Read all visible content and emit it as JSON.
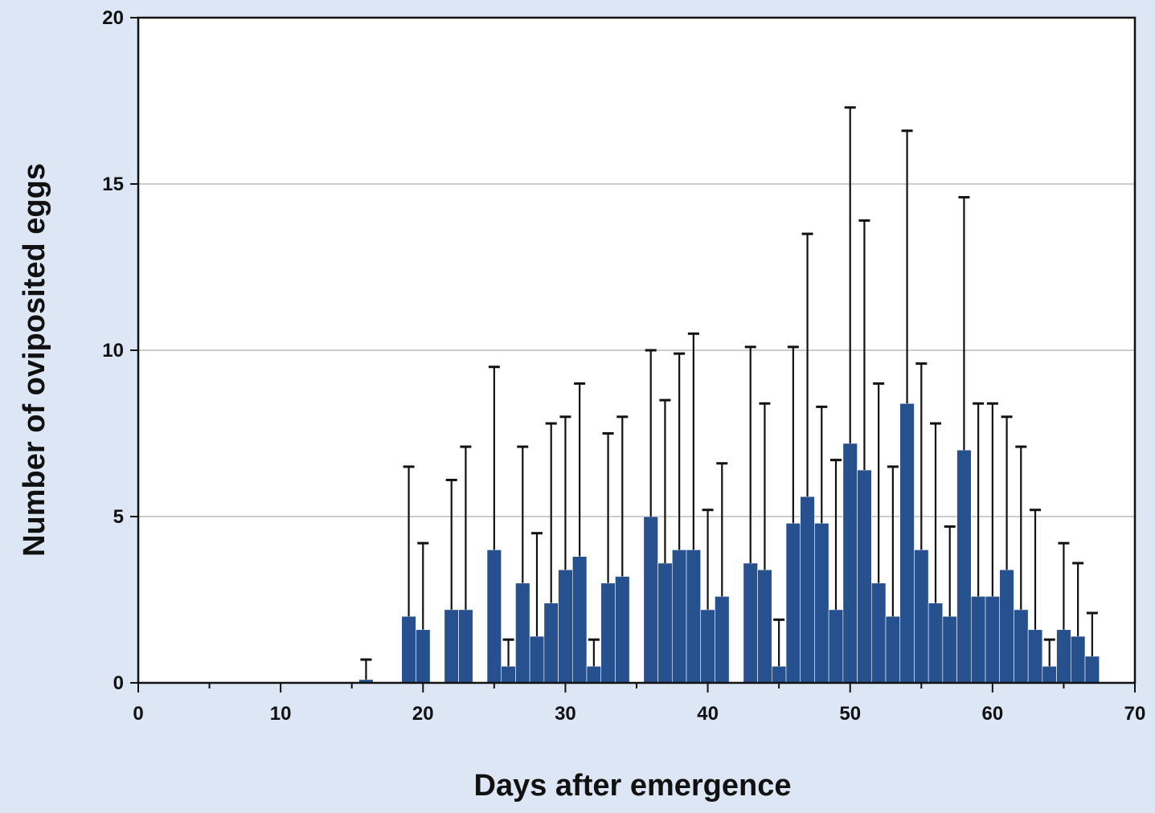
{
  "chart_data": {
    "type": "bar",
    "xlabel": "Days after emergence",
    "ylabel": "Number of oviposited eggs",
    "xlim": [
      0,
      70
    ],
    "ylim": [
      0,
      20
    ],
    "xticks": [
      "0",
      "10",
      "20",
      "30",
      "40",
      "50",
      "60",
      "70"
    ],
    "yticks": [
      "0",
      "5",
      "10",
      "15",
      "20"
    ],
    "grid": "horizontal",
    "bar_color": "#27508f",
    "error_bar_color": "#111111",
    "x": [
      16,
      19,
      20,
      22,
      23,
      25,
      26,
      27,
      28,
      29,
      30,
      31,
      32,
      33,
      34,
      36,
      37,
      38,
      39,
      40,
      41,
      43,
      44,
      45,
      46,
      47,
      48,
      49,
      50,
      51,
      52,
      53,
      54,
      55,
      56,
      57,
      58,
      59,
      60,
      61,
      62,
      63,
      64,
      65,
      66,
      67
    ],
    "values": [
      0.1,
      2.0,
      1.6,
      2.2,
      2.2,
      4.0,
      0.5,
      3.0,
      1.4,
      2.4,
      3.4,
      3.8,
      0.5,
      3.0,
      3.2,
      5.0,
      3.6,
      4.0,
      4.0,
      2.2,
      2.6,
      3.6,
      3.4,
      0.5,
      4.8,
      5.6,
      4.8,
      2.2,
      7.2,
      6.4,
      3.0,
      2.0,
      8.4,
      4.0,
      2.4,
      2.0,
      7.0,
      2.6,
      2.6,
      3.4,
      2.2,
      1.6,
      0.5,
      1.6,
      1.4,
      0.8
    ],
    "error_upper": [
      0.7,
      6.5,
      4.2,
      6.1,
      7.1,
      9.5,
      1.3,
      7.1,
      4.5,
      7.8,
      8.0,
      9.0,
      1.3,
      7.5,
      8.0,
      10.0,
      8.5,
      9.9,
      10.5,
      5.2,
      6.6,
      10.1,
      8.4,
      1.9,
      10.1,
      13.5,
      8.3,
      6.7,
      17.3,
      13.9,
      9.0,
      6.5,
      16.6,
      9.6,
      7.8,
      4.7,
      14.6,
      8.4,
      8.4,
      8.0,
      7.1,
      5.2,
      1.3,
      4.2,
      3.6,
      2.1
    ]
  }
}
